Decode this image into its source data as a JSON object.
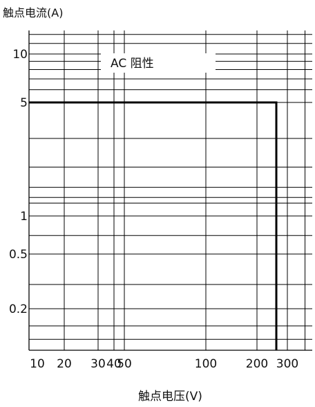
{
  "chart_data": {
    "type": "line",
    "title": "",
    "ylabel": "触点电流(A)",
    "xlabel": "触点电压(V)",
    "annotation": "AC 阻性",
    "x_scale": "log",
    "y_scale": "log",
    "xlim": [
      7,
      450
    ],
    "ylim": [
      0.1,
      15
    ],
    "grid": true,
    "x_ticks": [
      {
        "label": "10",
        "value": 10
      },
      {
        "label": "20",
        "value": 20
      },
      {
        "label": "30",
        "value": 30
      },
      {
        "label": "40",
        "value": 40
      },
      {
        "label": "50",
        "value": 50
      },
      {
        "label": "100",
        "value": 100
      },
      {
        "label": "200",
        "value": 200
      },
      {
        "label": "300",
        "value": 300
      }
    ],
    "y_ticks": [
      {
        "label": "10",
        "value": 10
      },
      {
        "label": "5",
        "value": 5
      },
      {
        "label": "1",
        "value": 1
      },
      {
        "label": "0.5",
        "value": 0.5
      },
      {
        "label": "0.2",
        "value": 0.2
      }
    ],
    "series": [
      {
        "name": "",
        "color": "#000000",
        "points": [
          {
            "x": 7,
            "y": 5
          },
          {
            "x": 250,
            "y": 5
          },
          {
            "x": 250,
            "y": 0.1
          }
        ]
      }
    ]
  }
}
